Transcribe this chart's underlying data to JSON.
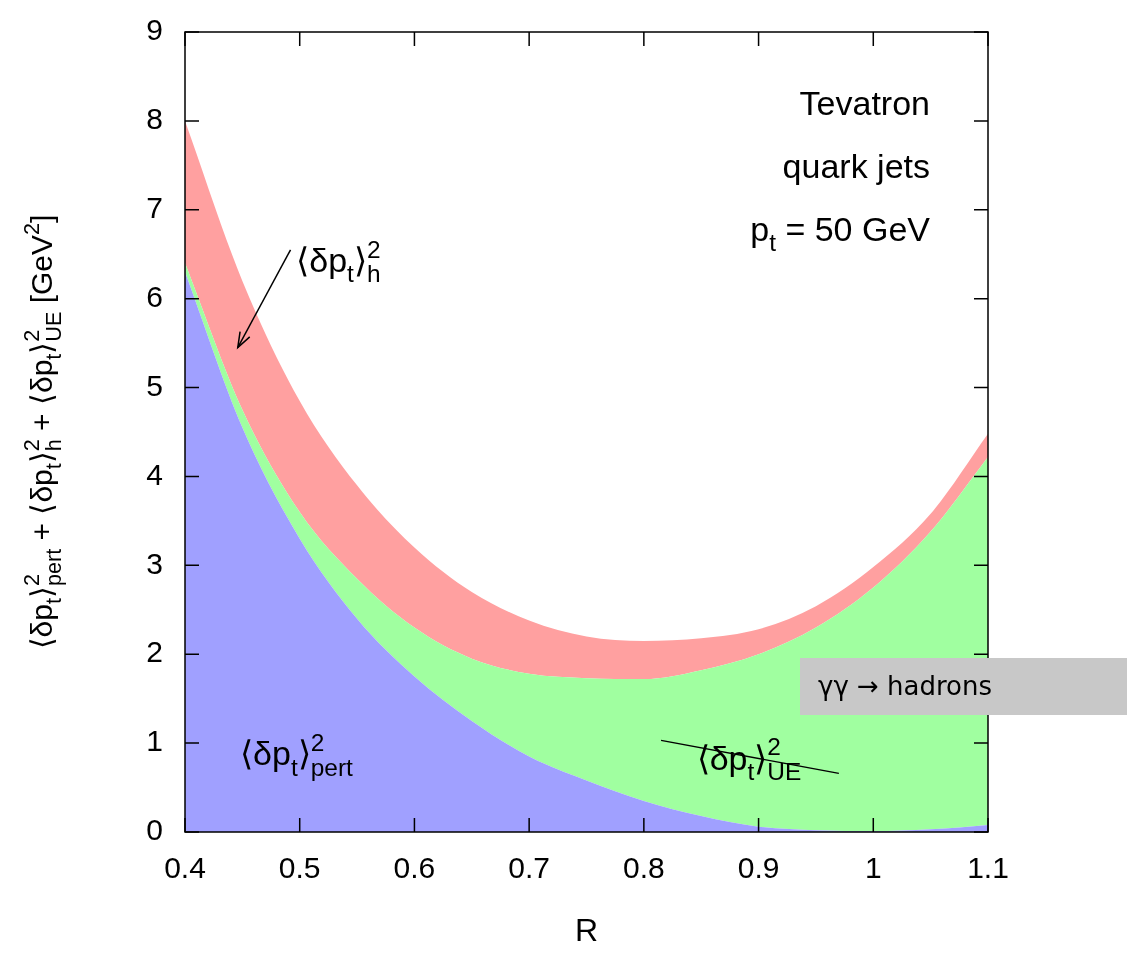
{
  "chart_data": {
    "type": "area",
    "stacked": true,
    "xlabel": "R",
    "ylabel": "⟨δp$_{t}$⟩$^{2}$$_{pert}$ + ⟨δp$_{t}$⟩$^{2}$$_{h}$ + ⟨δp$_{t}$⟩$^{2}$$_{UE}$ [GeV$^{2}$]",
    "x": [
      0.4,
      0.45,
      0.5,
      0.55,
      0.6,
      0.65,
      0.7,
      0.75,
      0.8,
      0.85,
      0.9,
      0.95,
      1.0,
      1.05,
      1.1
    ],
    "series": [
      {
        "name": "⟨δp$_{t}$⟩$^{2}$$_{pert}$",
        "color": "#a0a0ff",
        "values": [
          6.3,
          4.55,
          3.3,
          2.4,
          1.75,
          1.25,
          0.85,
          0.58,
          0.35,
          0.18,
          0.06,
          0.02,
          0.01,
          0.03,
          0.08
        ]
      },
      {
        "name": "⟨δp$_{t}$⟩$^{2}$$_{UE}$",
        "color": "#a0ffa0",
        "values": [
          0.1,
          0.2,
          0.3,
          0.45,
          0.55,
          0.7,
          0.93,
          1.15,
          1.37,
          1.64,
          1.94,
          2.28,
          2.74,
          3.35,
          4.14
        ]
      },
      {
        "name": "⟨δp$_{t}$⟩$^{2}$$_{h}$",
        "color": "#ffa0a0",
        "values": [
          1.6,
          1.45,
          1.25,
          1.05,
          0.9,
          0.75,
          0.6,
          0.47,
          0.43,
          0.36,
          0.28,
          0.24,
          0.23,
          0.2,
          0.26
        ]
      }
    ],
    "xlim": [
      0.4,
      1.1
    ],
    "xticks": [
      0.4,
      0.5,
      0.6,
      0.7,
      0.8,
      0.9,
      1,
      1.1
    ],
    "ylim": [
      0,
      9
    ],
    "yticks": [
      0,
      1,
      2,
      3,
      4,
      5,
      6,
      7,
      8,
      9
    ],
    "legend": false,
    "annotations": [
      "Tevatron",
      "quark jets",
      "p$_{t}$ = 50 GeV",
      "γγ → hadrons"
    ]
  }
}
